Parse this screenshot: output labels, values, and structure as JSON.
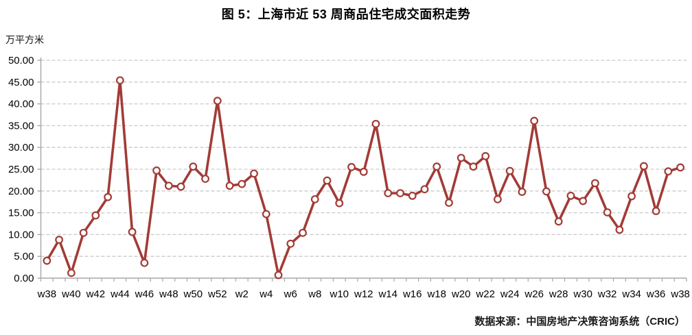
{
  "chart_data": {
    "type": "line",
    "title": "图 5：上海市近 53 周商品住宅成交面积走势",
    "y_unit_label": "万平方米",
    "source": "数据来源：中国房地产决策咨询系统（CRIC）",
    "categories": [
      "w38",
      "w39",
      "w40",
      "w41",
      "w42",
      "w43",
      "w44",
      "w45",
      "w46",
      "w47",
      "w48",
      "w49",
      "w50",
      "w51",
      "w52",
      "w1",
      "w2",
      "w3",
      "w4",
      "w5",
      "w6",
      "w7",
      "w8",
      "w9",
      "w10",
      "w11",
      "w12",
      "w13",
      "w14",
      "w15",
      "w16",
      "w17",
      "w18",
      "w19",
      "w20",
      "w21",
      "w22",
      "w23",
      "w24",
      "w25",
      "w26",
      "w27",
      "w28",
      "w29",
      "w30",
      "w31",
      "w32",
      "w33",
      "w34",
      "w35",
      "w36",
      "w37",
      "w38"
    ],
    "values": [
      4.0,
      8.8,
      1.2,
      10.4,
      14.4,
      18.6,
      45.4,
      10.6,
      3.5,
      24.7,
      21.2,
      21.0,
      25.6,
      22.8,
      40.7,
      21.2,
      21.6,
      24.0,
      14.7,
      0.7,
      7.9,
      10.4,
      18.1,
      22.4,
      17.2,
      25.5,
      24.4,
      35.4,
      19.5,
      19.5,
      18.9,
      20.4,
      25.6,
      17.3,
      27.6,
      25.6,
      28.0,
      18.1,
      24.6,
      19.8,
      36.1,
      19.9,
      13.0,
      18.9,
      17.7,
      21.8,
      15.1,
      11.1,
      18.8,
      25.7,
      15.4,
      24.5,
      25.4
    ],
    "x_axis_visible_labels": [
      "w38",
      "w40",
      "w42",
      "w44",
      "w46",
      "w48",
      "w50",
      "w52",
      "w2",
      "w4",
      "w6",
      "w8",
      "w10",
      "w12",
      "w14",
      "w16",
      "w18",
      "w20",
      "w22",
      "w24",
      "w26",
      "w28",
      "w30",
      "w32",
      "w34",
      "w36",
      "w38"
    ],
    "label_every": 2,
    "ylim": [
      0,
      50
    ],
    "ytick_step": 5,
    "ytick_decimals": 2,
    "grid": "horizontal-dashed",
    "legend": "none",
    "colors": {
      "line": "#A23B36",
      "marker_fill": "#FFFFFF",
      "grid": "#C9C9C9",
      "axis": "#A6A6A6",
      "text": "#000000"
    }
  }
}
